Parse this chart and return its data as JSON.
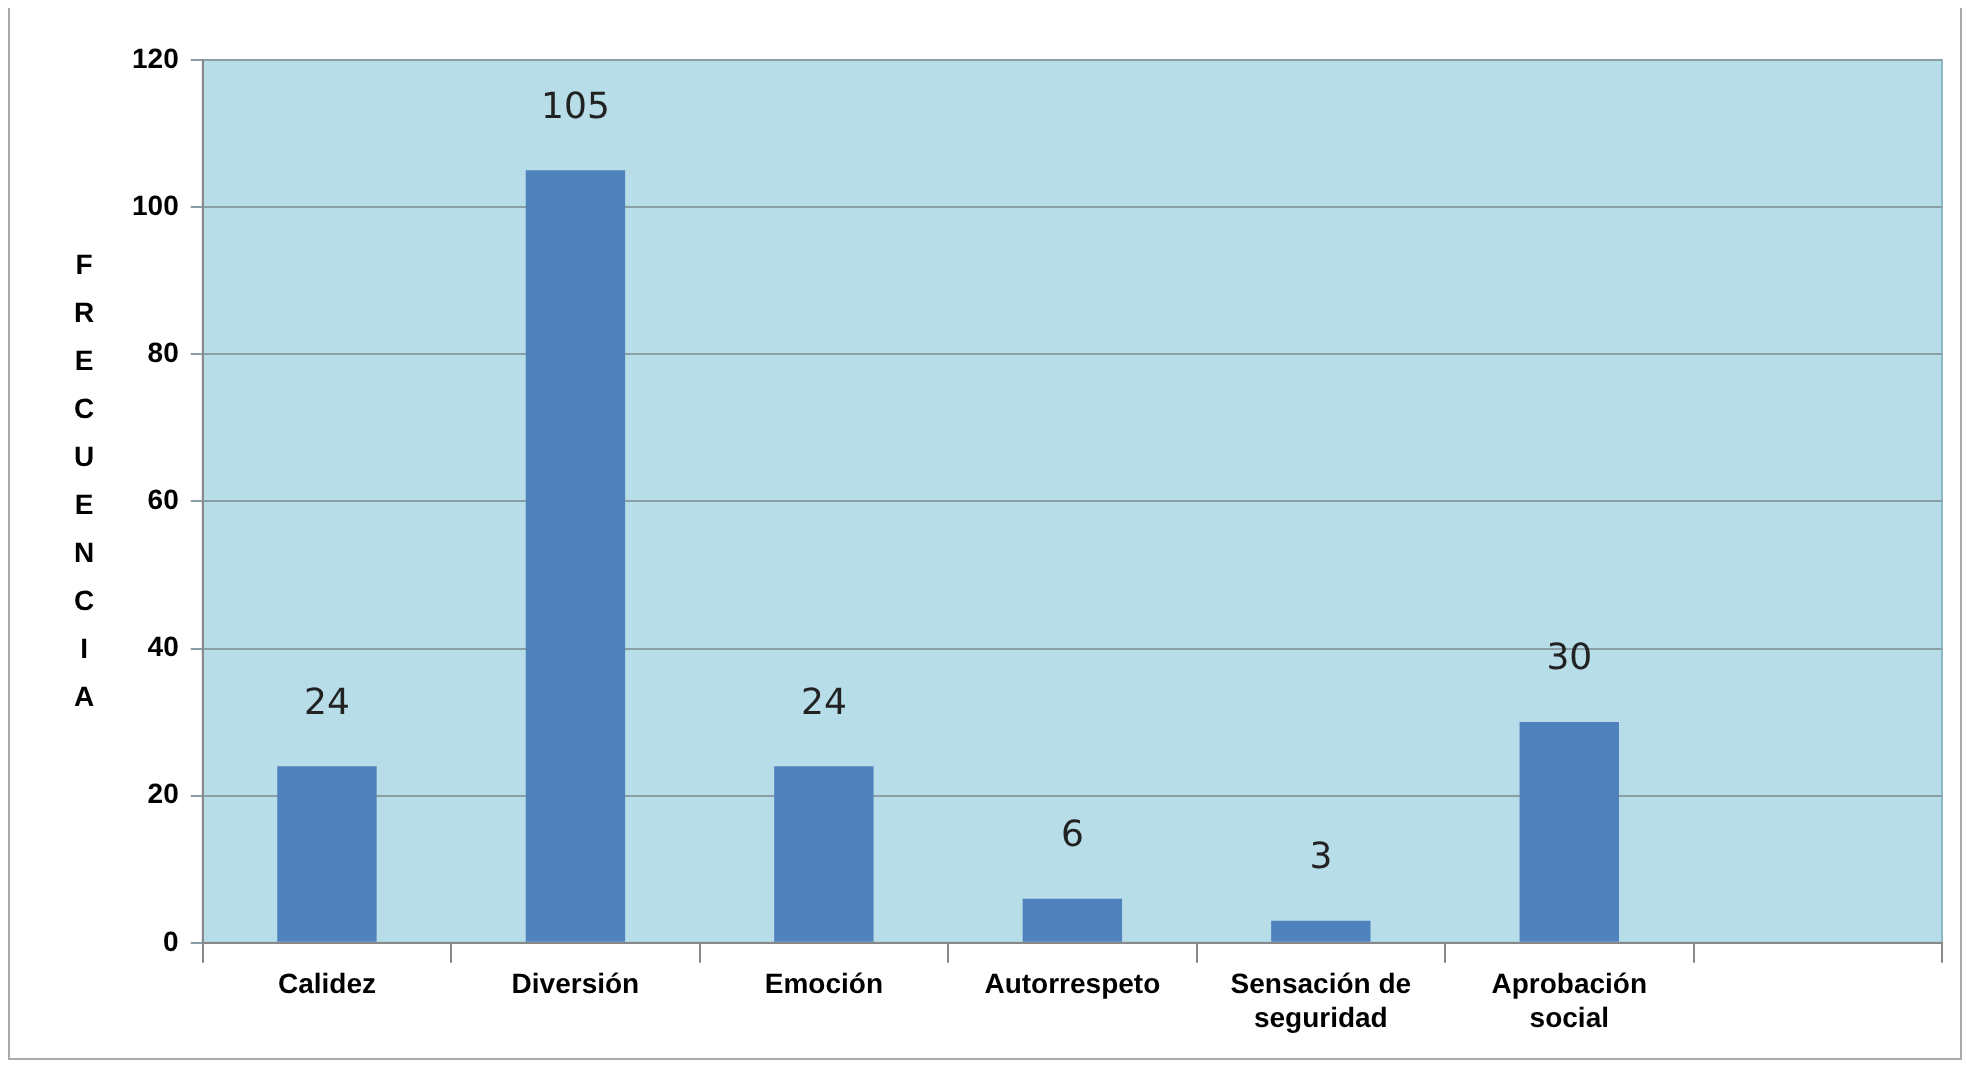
{
  "chart_data": {
    "type": "bar",
    "ylabel": "FRECUENCIA",
    "categories": [
      "Calidez",
      "Diversión",
      "Emoción",
      "Autorrespeto",
      "Sensación de seguridad",
      "Aprobación social",
      null
    ],
    "values": [
      24,
      105,
      24,
      6,
      3,
      30,
      null
    ],
    "color": "#4f81bd",
    "ylim": [
      0,
      120
    ],
    "yticks": [
      0,
      20,
      40,
      60,
      80,
      100,
      120
    ],
    "grid": "y",
    "data_labels": true,
    "legend": false
  }
}
